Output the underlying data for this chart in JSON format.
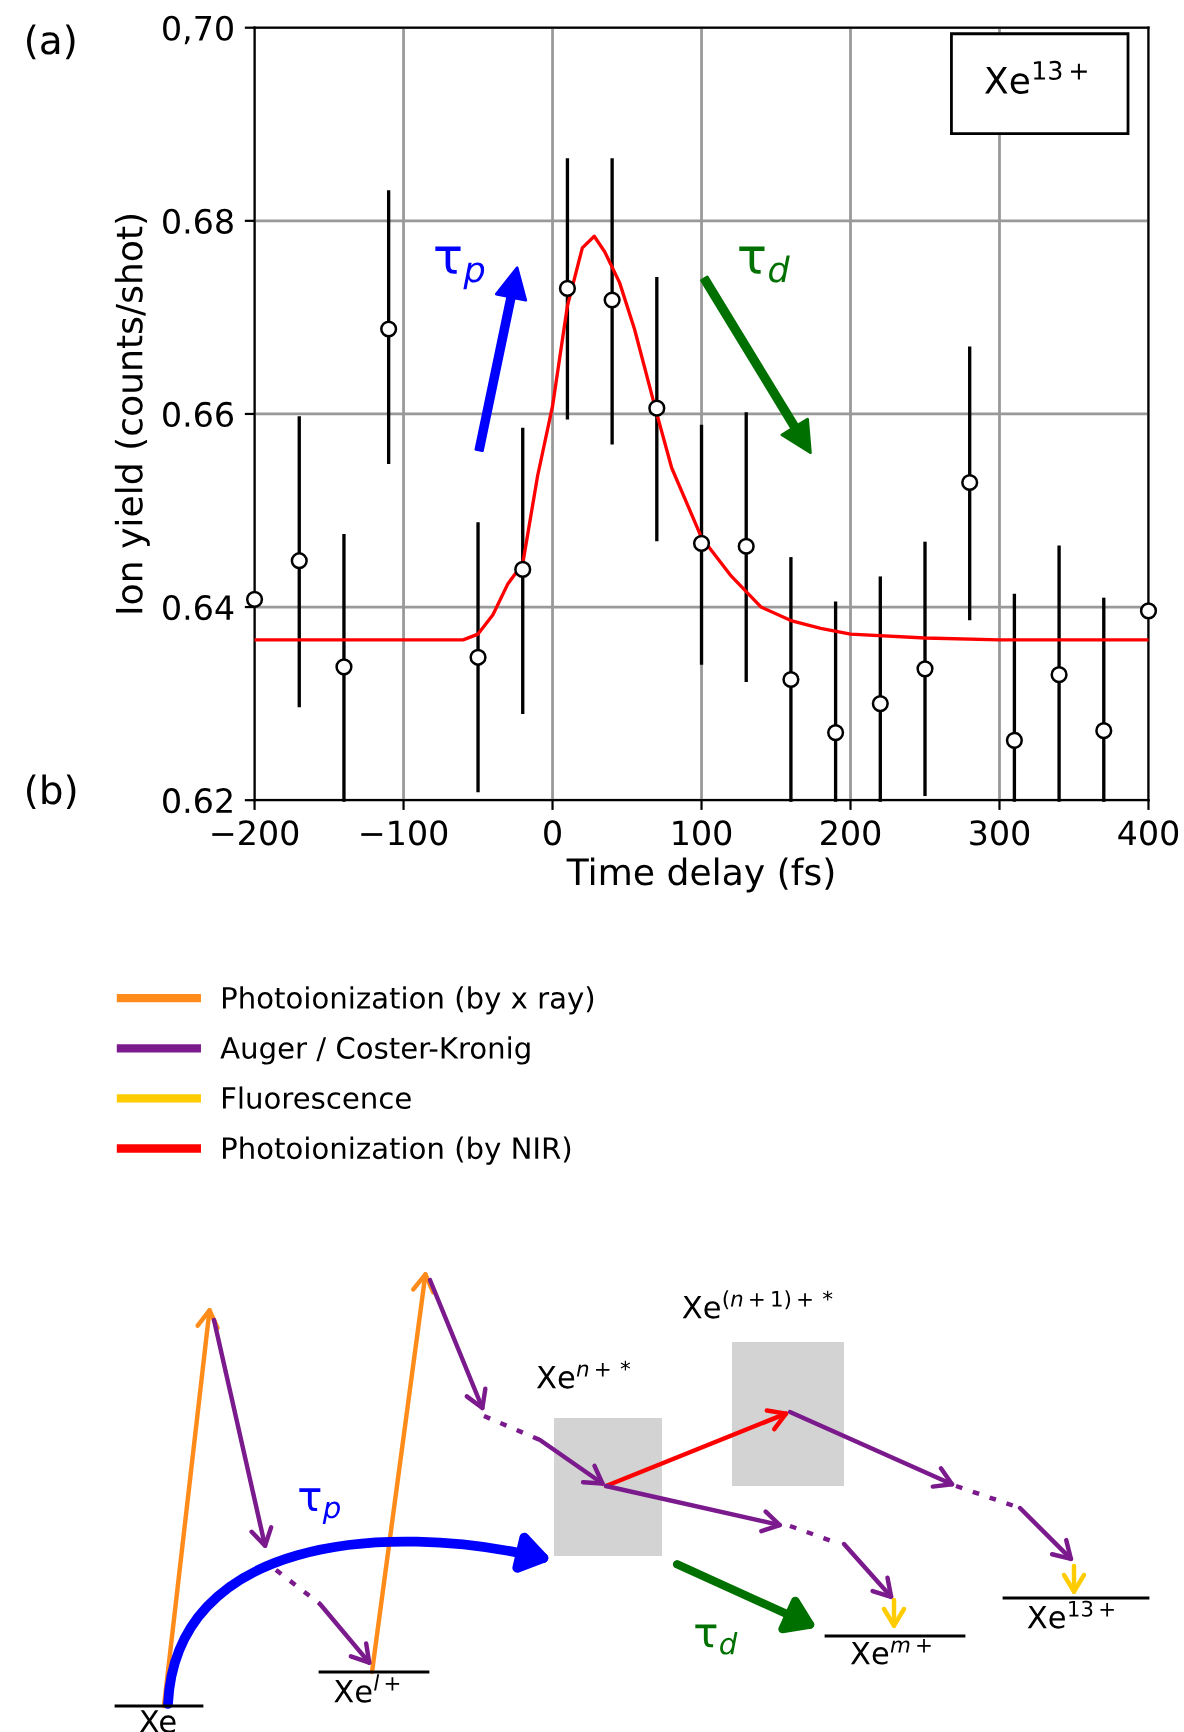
{
  "chart_data": [
    {
      "type": "scatter",
      "title": "(a)",
      "xlabel": "Time delay (fs)",
      "ylabel": "Ion yield (counts/shot)",
      "xlim": [
        -200,
        400
      ],
      "xticks": [
        {
          "value": -200,
          "label": "−200"
        },
        {
          "value": -100,
          "label": "−100"
        },
        0,
        100,
        200,
        300,
        400
      ],
      "ylim": [
        0.62,
        0.7
      ],
      "yticks": [
        0.62,
        0.64,
        0.66,
        0.68,
        {
          "value": 0.7,
          "label": "0,70"
        }
      ],
      "grid": true,
      "series": [
        {
          "type": "scatter",
          "marker": "circle",
          "color": "#000000",
          "x": [
            -200,
            -170,
            -140,
            -110,
            -80,
            -50,
            -20,
            10,
            40,
            70,
            100,
            130,
            160,
            190,
            220,
            250,
            280,
            310,
            340,
            370,
            400
          ],
          "values": [
            0.6408,
            0.6448,
            0.6338,
            0.6688,
            null,
            0.6348,
            0.6439,
            0.673,
            0.6718,
            0.6606,
            0.6466,
            0.6463,
            0.6325,
            0.627,
            0.63,
            0.6336,
            0.6529,
            0.6262,
            0.633,
            0.6272,
            0.6396
          ],
          "errors": [
            null,
            [
              0.6298,
              0.6596
            ],
            [
              0.62,
              0.6474
            ],
            [
              0.655,
              0.683
            ],
            null,
            [
              0.621,
              0.6486
            ],
            [
              0.6291,
              0.6584
            ],
            [
              0.6596,
              0.6863
            ],
            [
              0.657,
              0.6863
            ],
            [
              0.647,
              0.674
            ],
            [
              0.6342,
              0.6587
            ],
            [
              0.6324,
              0.66
            ],
            [
              0.62,
              0.645
            ],
            [
              0.62,
              0.6404
            ],
            [
              0.62,
              0.643
            ],
            [
              0.6206,
              0.6466
            ],
            [
              0.6388,
              0.6668
            ],
            [
              0.62,
              0.6412
            ],
            [
              0.62,
              0.6462
            ],
            [
              0.62,
              0.6408
            ],
            null
          ]
        },
        {
          "type": "line",
          "color": "#ff0000",
          "x": [
            -200,
            -60,
            -50,
            -40,
            -30,
            -20,
            -10,
            0,
            10,
            20,
            28,
            35,
            45,
            55,
            70,
            80,
            100,
            120,
            140,
            160,
            180,
            200,
            250,
            300,
            400
          ],
          "values": [
            0.6366,
            0.6366,
            0.6372,
            0.6392,
            0.6424,
            0.6445,
            0.6536,
            0.6608,
            0.6712,
            0.6772,
            0.6784,
            0.6768,
            0.6736,
            0.6688,
            0.66,
            0.6544,
            0.6472,
            0.6432,
            0.64,
            0.6386,
            0.6378,
            0.6372,
            0.6368,
            0.6366,
            0.6366
          ]
        }
      ],
      "annotations": [
        "Xe$^{13+}$",
        "τ$_{p}$",
        "τ$_{d}$"
      ]
    },
    {
      "type": "other",
      "title": "(b)",
      "legend": "top left",
      "series": [
        {
          "name": "Photoionization (by x ray)",
          "color": "#ff8c1a"
        },
        {
          "name": "Auger / Coster-Kronig",
          "color": "#7b1a8c"
        },
        {
          "name": "Fluorescence",
          "color": "#ffcc00"
        },
        {
          "name": "Photoionization (by NIR)",
          "color": "#ff0000"
        }
      ],
      "annotations": [
        "Xe",
        "Xe$^{l+}$",
        "Xe$^{n+*}$",
        "Xe$^{(n+1)+*}$",
        "Xe$^{m+}$",
        "Xe$^{13+}$",
        "τ$_{p}$",
        "τ$_{d}$"
      ]
    }
  ]
}
